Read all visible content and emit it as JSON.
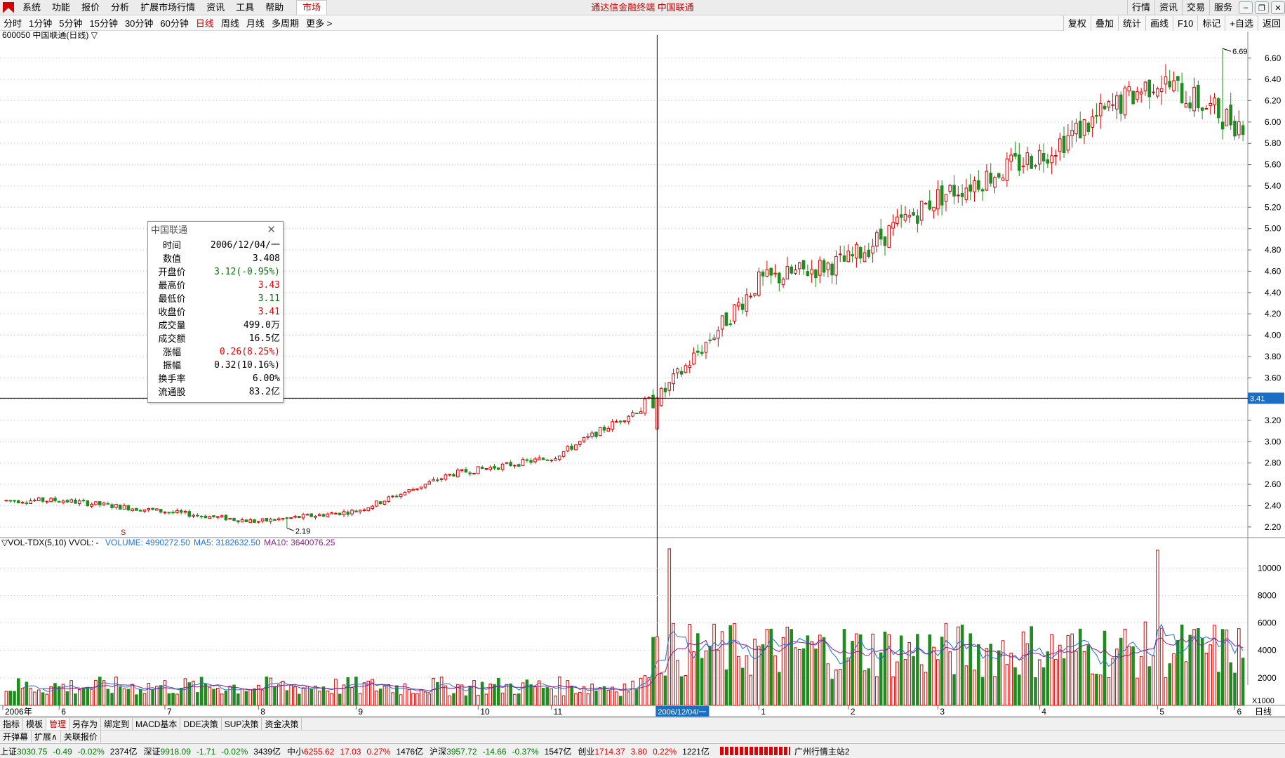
{
  "app_title": "通达信金融终端  中国联通",
  "menu": {
    "items": [
      "系统",
      "功能",
      "报价",
      "分析",
      "扩展市场行情",
      "资讯",
      "工具",
      "帮助"
    ],
    "active": "市场"
  },
  "top_right": [
    "行情",
    "资讯",
    "交易",
    "服务"
  ],
  "periods": {
    "items": [
      "分时",
      "1分钟",
      "5分钟",
      "15分钟",
      "30分钟",
      "60分钟",
      "日线",
      "周线",
      "月线",
      "多周期",
      "更多 >"
    ],
    "selected": "日线"
  },
  "period_tools": [
    "复权",
    "叠加",
    "统计",
    "画线",
    "F10",
    "标记",
    "+自选",
    "返回"
  ],
  "chart": {
    "symbol_title": "600050 中国联通(日线) ▽",
    "price_axis": [
      "6.60",
      "6.40",
      "6.20",
      "6.00",
      "5.80",
      "5.60",
      "5.40",
      "5.20",
      "5.00",
      "4.80",
      "4.60",
      "4.40",
      "4.20",
      "4.00",
      "3.80",
      "3.60",
      "3.40",
      "3.20",
      "3.00",
      "2.80",
      "2.60",
      "2.40",
      "2.20"
    ],
    "max_label": "6.69",
    "min_label": "2.19",
    "cursor_price": "3.41",
    "cursor_date": "2006/12/04/一",
    "time_labels": [
      "2006年",
      "6",
      "7",
      "8",
      "9",
      "10",
      "11",
      "1",
      "2",
      "3",
      "4",
      "5",
      "6"
    ],
    "volume_header": {
      "indicator": "▽VOL-TDX(5,10) VVOL: -",
      "volume": "VOLUME: 4990272.50",
      "ma5": "MA5: 3182632.50",
      "ma10": "MA10: 3640076.25"
    },
    "volume_axis": [
      "10000",
      "8000",
      "6000",
      "4000",
      "2000"
    ],
    "volume_unit": "X1000",
    "period_label": "日线",
    "colors": {
      "up": "#e00000",
      "down": "#1e8c1e",
      "ma5": "#1f6fe0",
      "ma10": "#8a1f8a"
    }
  },
  "chart_data": {
    "type": "candlestick",
    "title": "600050 中国联通(日线)",
    "ylim": [
      2.1,
      6.75
    ],
    "x_range": [
      "2006-05",
      "2007-06"
    ],
    "milestones": [
      {
        "date": "2006-06-01",
        "close": 2.45
      },
      {
        "date": "2006-08-01",
        "close": 2.25
      },
      {
        "date": "2006-09-01",
        "close": 2.35
      },
      {
        "date": "2006-10-01",
        "close": 2.7
      },
      {
        "date": "2006-11-01",
        "close": 2.85
      },
      {
        "date": "2006-12-04",
        "close": 3.41
      },
      {
        "date": "2007-01-04",
        "close": 4.5
      },
      {
        "date": "2007-02-01",
        "close": 4.7
      },
      {
        "date": "2007-03-01",
        "close": 5.3
      },
      {
        "date": "2007-04-02",
        "close": 5.7
      },
      {
        "date": "2007-05-08",
        "close": 6.4
      },
      {
        "date": "2007-06-01",
        "close": 6.0
      }
    ],
    "high": 6.69,
    "low": 2.19,
    "volume_ylim": [
      0,
      11500
    ]
  },
  "info_panel": {
    "title": "中国联通",
    "rows": [
      {
        "k": "时间",
        "v": "2006/12/04/一",
        "c": "n"
      },
      {
        "k": "数值",
        "v": "3.408",
        "c": "n"
      },
      {
        "k": "开盘价",
        "v": "3.12(-0.95%)",
        "c": "dn"
      },
      {
        "k": "最高价",
        "v": "3.43",
        "c": "up"
      },
      {
        "k": "最低价",
        "v": "3.11",
        "c": "dn"
      },
      {
        "k": "收盘价",
        "v": "3.41",
        "c": "up"
      },
      {
        "k": "成交量",
        "v": "499.0万",
        "c": "n"
      },
      {
        "k": "成交额",
        "v": "16.5亿",
        "c": "n"
      },
      {
        "k": "涨幅",
        "v": "0.26(8.25%)",
        "c": "up"
      },
      {
        "k": "振幅",
        "v": "0.32(10.16%)",
        "c": "n"
      },
      {
        "k": "换手率",
        "v": "6.00%",
        "c": "n"
      },
      {
        "k": "流通股",
        "v": "83.2亿",
        "c": "n"
      }
    ]
  },
  "tabs": [
    "指标",
    "模板",
    "管理",
    "另存为",
    "绑定到",
    "MACD基本",
    "DDE决策",
    "SUP决策",
    "资金决策"
  ],
  "tabs_selected": "管理",
  "tabs2": [
    "开弹幕",
    "扩展∧",
    "关联报价"
  ],
  "status": [
    {
      "name": "上证",
      "val": "3030.75",
      "chg": "-0.49",
      "pct": "-0.02%",
      "amt": "2374亿",
      "dir": "dn"
    },
    {
      "name": "深证",
      "val": "9918.09",
      "chg": "-1.71",
      "pct": "-0.02%",
      "amt": "3439亿",
      "dir": "dn"
    },
    {
      "name": "中小",
      "val": "6255.62",
      "chg": "17.03",
      "pct": "0.27%",
      "amt": "1476亿",
      "dir": "up"
    },
    {
      "name": "沪深",
      "val": "3957.72",
      "chg": "-14.66",
      "pct": "-0.37%",
      "amt": "1547亿",
      "dir": "dn"
    },
    {
      "name": "创业",
      "val": "1714.37",
      "chg": "3.80",
      "pct": "0.22%",
      "amt": "1221亿",
      "dir": "up"
    }
  ],
  "server": "广州行情主站2"
}
